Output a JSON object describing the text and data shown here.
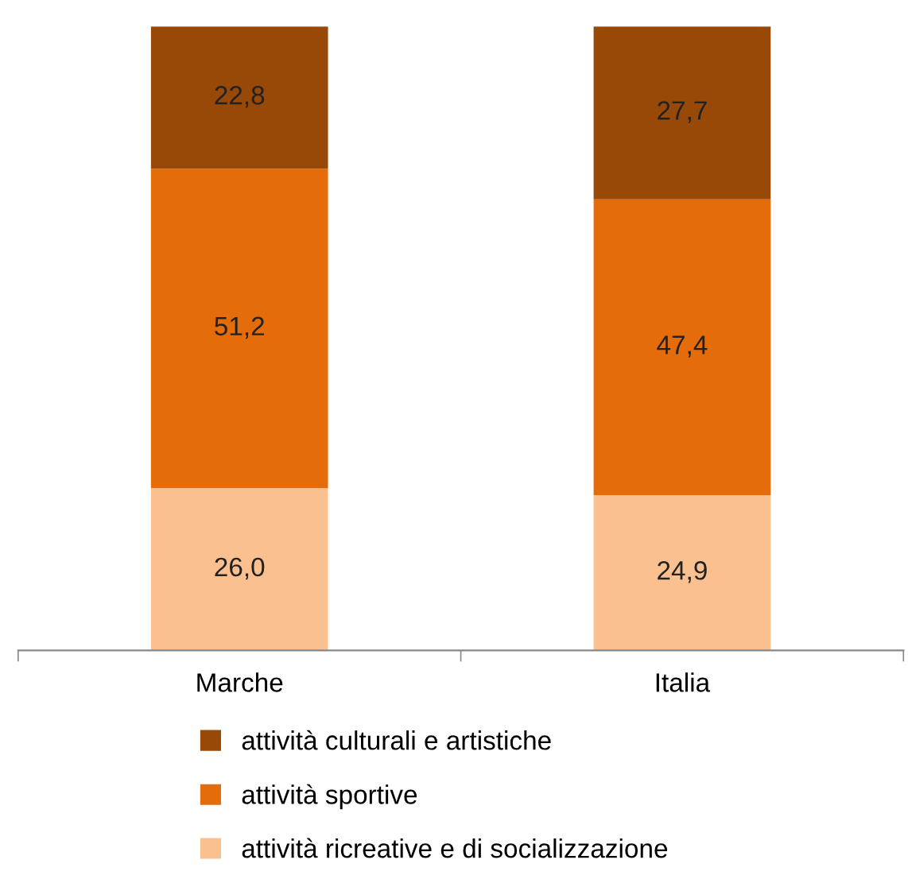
{
  "chart_data": {
    "type": "bar",
    "stacked": true,
    "categories": [
      "Marche",
      "Italia"
    ],
    "series": [
      {
        "name": "attività ricreative e di socializzazione",
        "color": "#fac090",
        "values": [
          26.0,
          24.9
        ],
        "value_labels": [
          "26,0",
          "24,9"
        ]
      },
      {
        "name": "attività sportive",
        "color": "#e46c0a",
        "values": [
          51.2,
          47.4
        ],
        "value_labels": [
          "51,2",
          "47,4"
        ]
      },
      {
        "name": "attività culturali e artistiche",
        "color": "#984807",
        "values": [
          22.8,
          27.7
        ],
        "value_labels": [
          "22,8",
          "27,7"
        ]
      }
    ],
    "legend": "bottom",
    "grid": false
  }
}
